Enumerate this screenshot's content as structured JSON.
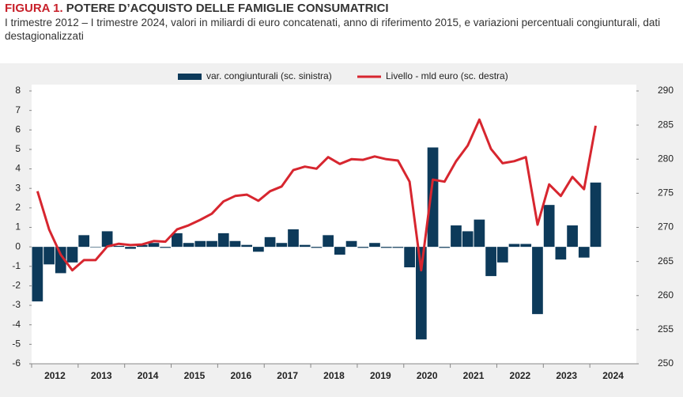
{
  "chart_data": {
    "type": "bar_line",
    "figure_label": "FIGURA 1.",
    "title": "POTERE D’ACQUISTO DELLE FAMIGLIE CONSUMATRICI",
    "subtitle": "I trimestre 2012 – I trimestre 2024, valori in miliardi di euro concatenati, anno di riferimento 2015, e variazioni percentuali congiunturali, dati destagionalizzati",
    "categories": [
      "2012",
      null,
      null,
      null,
      "2013",
      null,
      null,
      null,
      "2014",
      null,
      null,
      null,
      "2015",
      null,
      null,
      null,
      "2016",
      null,
      null,
      null,
      "2017",
      null,
      null,
      null,
      "2018",
      null,
      null,
      null,
      "2019",
      null,
      null,
      null,
      "2020",
      null,
      null,
      null,
      "2021",
      null,
      null,
      null,
      "2022",
      null,
      null,
      null,
      "2023",
      null,
      null,
      null,
      "2024",
      null,
      null,
      null
    ],
    "series": [
      {
        "name": "var. congiunturali (sc. sinistra)",
        "type": "bar",
        "axis": "y",
        "color": "#0d3a5a",
        "values": [
          -2.8,
          -0.9,
          -1.35,
          -0.8,
          0.6,
          0.0,
          0.8,
          0.05,
          -0.1,
          0.1,
          0.2,
          -0.05,
          0.7,
          0.2,
          0.3,
          0.3,
          0.7,
          0.3,
          0.1,
          -0.25,
          0.5,
          0.2,
          0.9,
          0.1,
          -0.05,
          0.6,
          -0.4,
          0.3,
          -0.05,
          0.2,
          -0.05,
          -0.05,
          -1.05,
          -4.75,
          5.1,
          -0.05,
          1.1,
          0.8,
          1.4,
          -1.5,
          -0.8,
          0.15,
          0.15,
          -3.45,
          2.15,
          -0.65,
          1.1,
          -0.55,
          3.3,
          null,
          null,
          null
        ]
      },
      {
        "name": "Livello - mld euro (sc. destra)",
        "type": "line",
        "axis": "y2",
        "color": "#d7262f",
        "values": [
          275.3,
          269.7,
          266.0,
          263.7,
          265.2,
          265.2,
          267.2,
          267.6,
          267.4,
          267.5,
          268.0,
          267.9,
          269.7,
          270.3,
          271.1,
          272.0,
          273.8,
          274.6,
          274.8,
          273.9,
          275.3,
          276.0,
          278.4,
          278.9,
          278.6,
          280.3,
          279.3,
          280.0,
          279.9,
          280.4,
          280.0,
          279.8,
          276.7,
          263.7,
          277.0,
          276.7,
          279.7,
          282.0,
          285.8,
          281.5,
          279.4,
          279.7,
          280.3,
          270.4,
          276.3,
          274.6,
          277.4,
          275.6,
          284.9,
          null,
          null,
          null
        ]
      }
    ],
    "ylim": [
      -6,
      8
    ],
    "yticks": [
      -6,
      -5,
      -4,
      -3,
      -2,
      -1,
      0,
      1,
      2,
      3,
      4,
      5,
      6,
      7,
      8
    ],
    "y2lim": [
      250,
      290
    ],
    "y2ticks": [
      250,
      255,
      260,
      265,
      270,
      275,
      280,
      285,
      290
    ],
    "legend": "top"
  }
}
